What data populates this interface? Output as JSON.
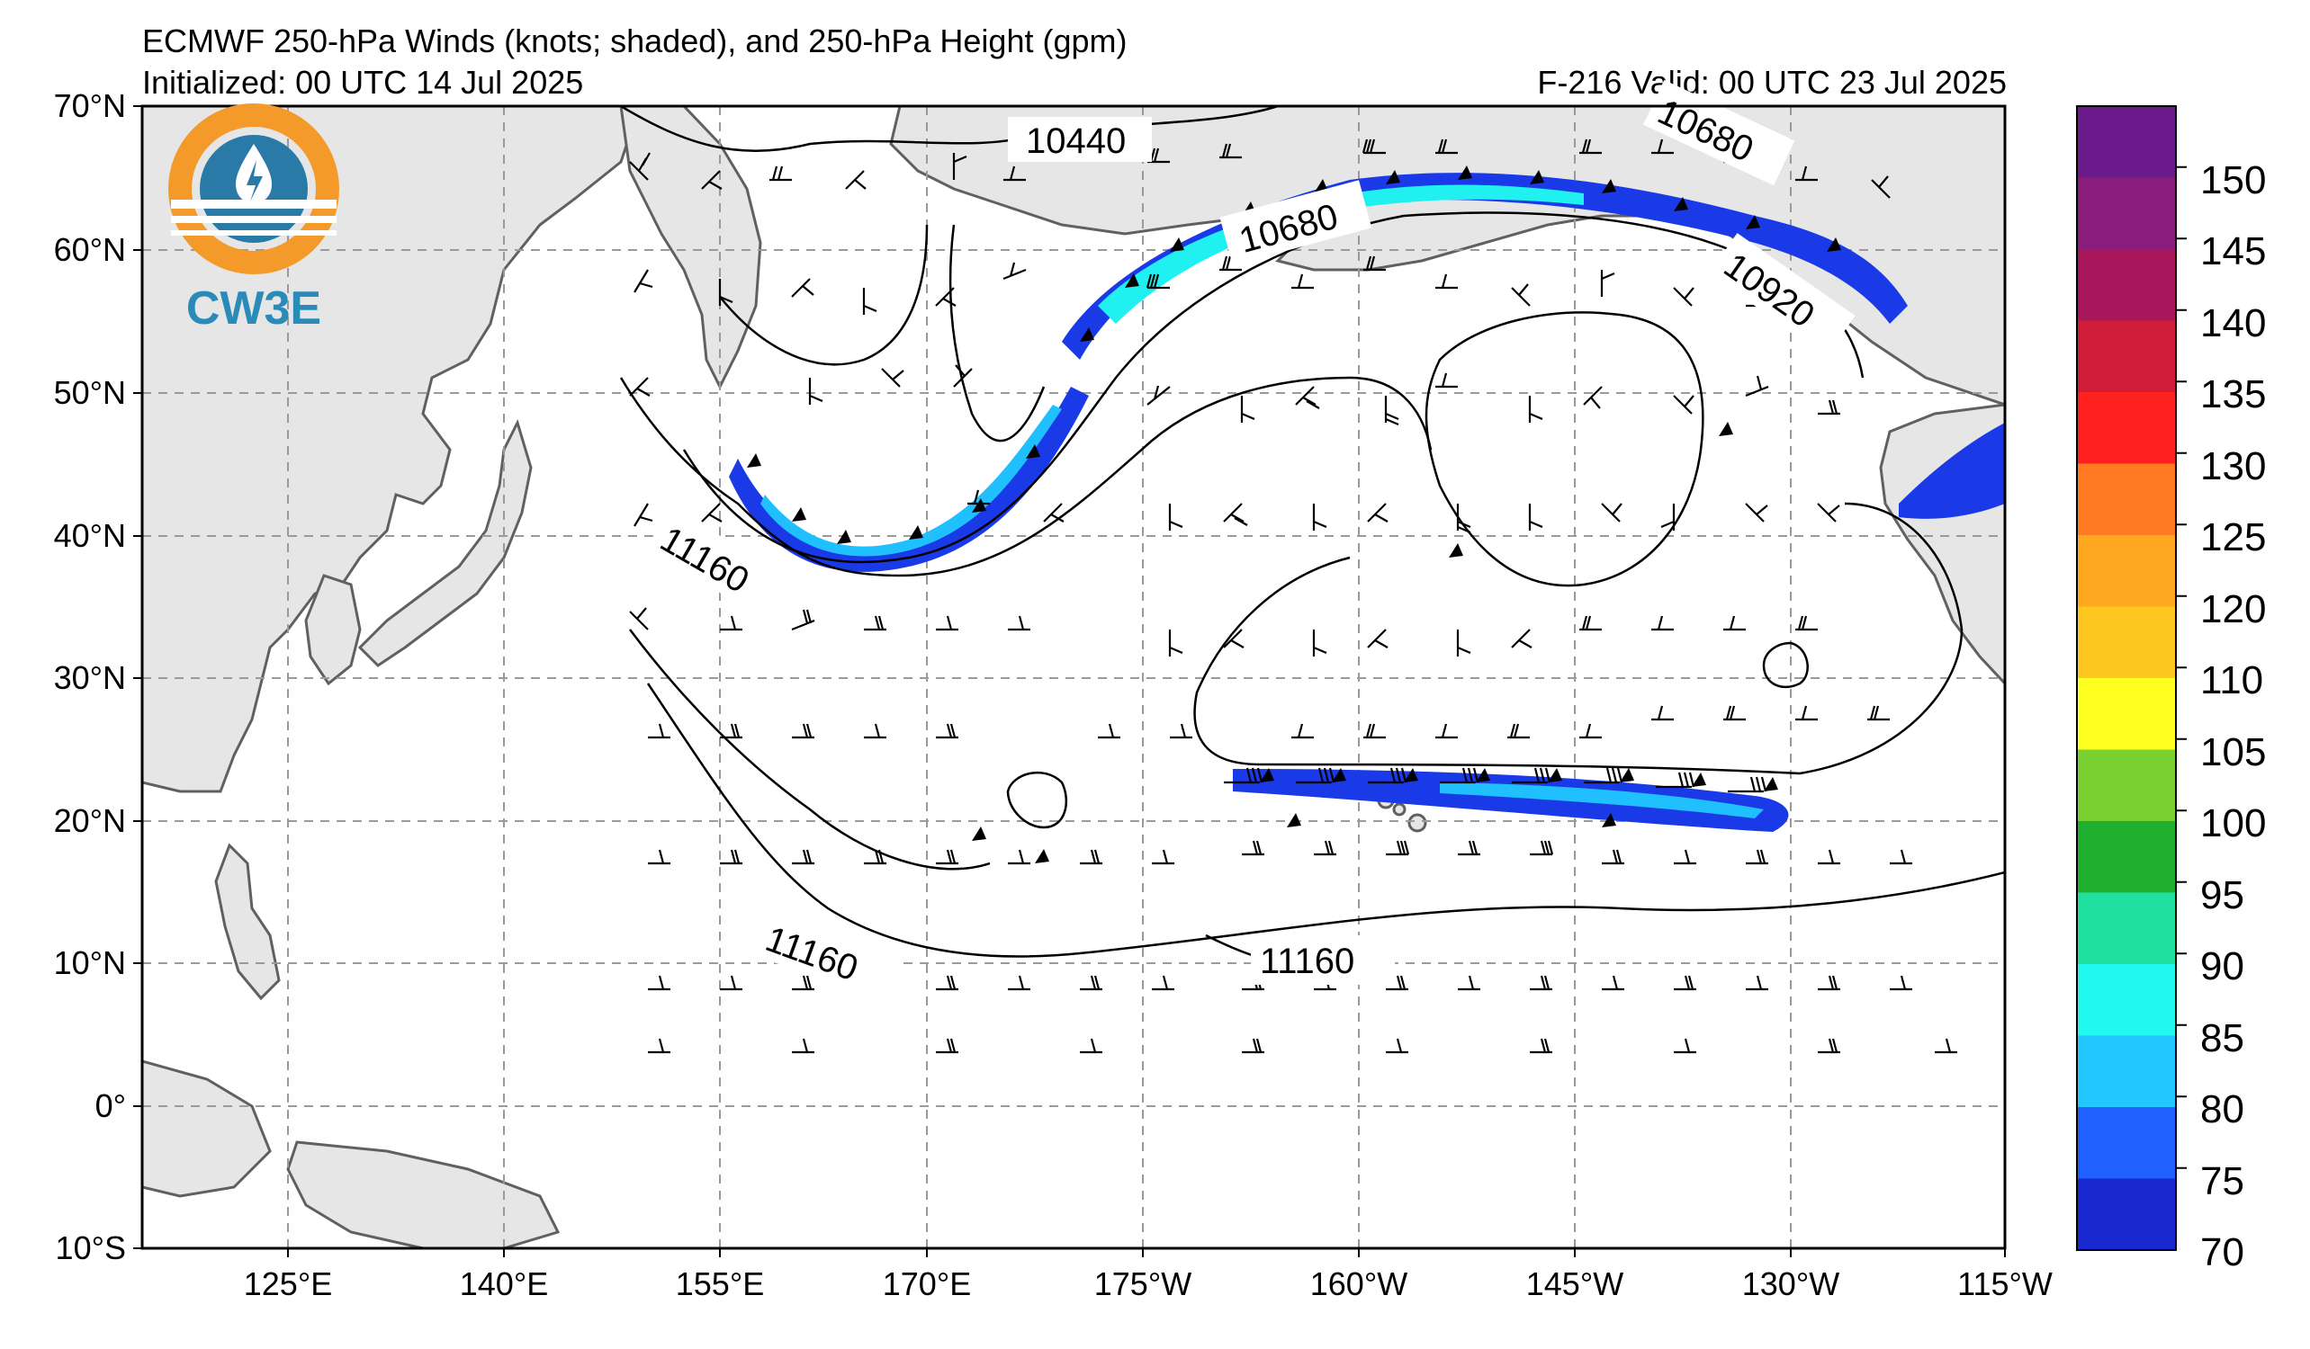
{
  "header": {
    "title": "ECMWF 250-hPa Winds (knots; shaded), and 250-hPa Height (gpm)",
    "initialized": "Initialized: 00 UTC 14 Jul 2025",
    "valid": "F-216  Valid: 00 UTC 23 Jul 2025"
  },
  "logo": {
    "text": "CW3E"
  },
  "axes": {
    "lat_labels": [
      "70°N",
      "60°N",
      "50°N",
      "40°N",
      "30°N",
      "20°N",
      "10°N",
      "0°",
      "10°S"
    ],
    "lon_labels": [
      "125°E",
      "140°E",
      "155°E",
      "170°E",
      "175°W",
      "160°W",
      "145°W",
      "130°W",
      "115°W"
    ]
  },
  "contour_labels": [
    "10440",
    "10680",
    "10680",
    "10920",
    "11160",
    "11160",
    "11160"
  ],
  "colorbar": {
    "labels": [
      "150",
      "145",
      "140",
      "135",
      "130",
      "125",
      "120",
      "110",
      "105",
      "100",
      "95",
      "90",
      "85",
      "80",
      "75",
      "70"
    ],
    "colors": [
      "#6b1a8c",
      "#8a1c7c",
      "#a8185c",
      "#d01e3a",
      "#ff2020",
      "#ff7a20",
      "#ffa820",
      "#ffc820",
      "#ffff20",
      "#7ad030",
      "#20b030",
      "#20e0a0",
      "#20f8f0",
      "#20c8ff",
      "#2060ff",
      "#1a28d0"
    ]
  },
  "colors": {
    "land": "#e6e6e6",
    "ocean": "#ffffff",
    "coast": "#606060",
    "grid": "#9a9a9a",
    "jet_core": "#20f0f0",
    "jet_mid": "#20c0ff",
    "jet_edge": "#1a3ae8"
  }
}
